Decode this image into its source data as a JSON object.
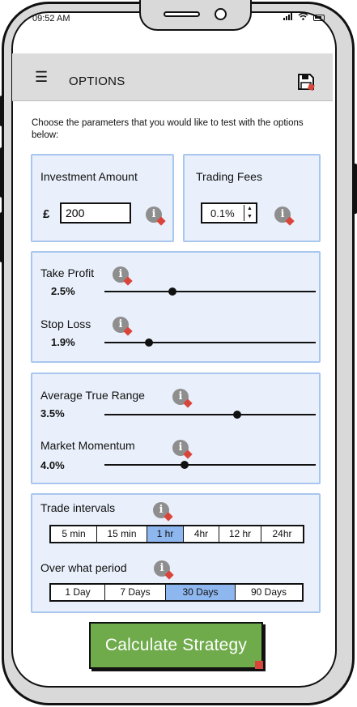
{
  "status_bar": {
    "time": "09:52 AM"
  },
  "header": {
    "title": "OPTIONS",
    "menu_icon": "hamburger-icon",
    "save_icon": "save-icon"
  },
  "intro": "Choose the parameters that you would like to test with the options below:",
  "investment": {
    "label": "Investment Amount",
    "currency": "£",
    "value": "200"
  },
  "fees": {
    "label": "Trading Fees",
    "value": "0.1%"
  },
  "take_profit": {
    "label": "Take Profit",
    "value": "2.5%",
    "level": 0.32
  },
  "stop_loss": {
    "label": "Stop Loss",
    "value": "1.9%",
    "level": 0.21
  },
  "atr": {
    "label": "Average True Range",
    "value": "3.5%",
    "level": 0.63
  },
  "momentum": {
    "label": "Market Momentum",
    "value": "4.0%",
    "level": 0.38
  },
  "intervals": {
    "label": "Trade intervals",
    "options": [
      "5 min",
      "15 min",
      "1 hr",
      "4hr",
      "12 hr",
      "24hr"
    ],
    "selected": "1 hr"
  },
  "period": {
    "label": "Over what period",
    "options": [
      "1 Day",
      "7 Days",
      "30 Days",
      "90 Days"
    ],
    "selected": "30 Days"
  },
  "calculate_button": "Calculate Strategy",
  "colors": {
    "panel_bg": "#e9f0fb",
    "panel_border": "#a9c7ee",
    "button_green": "#6fab4b",
    "selected_blue": "#8fb7ef"
  }
}
